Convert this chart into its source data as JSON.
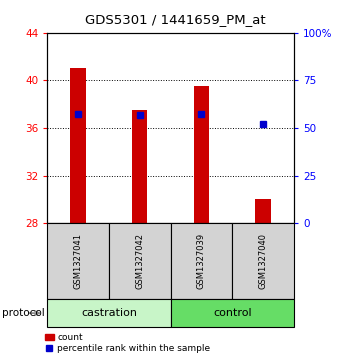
{
  "title": "GDS5301 / 1441659_PM_at",
  "samples": [
    "GSM1327041",
    "GSM1327042",
    "GSM1327039",
    "GSM1327040"
  ],
  "bar_values": [
    41.0,
    37.5,
    39.5,
    30.0
  ],
  "bar_bottom": 28.0,
  "percentile_values": [
    37.2,
    37.1,
    37.2,
    36.3
  ],
  "bar_color": "#cc0000",
  "percentile_color": "#0000cc",
  "ylim_left": [
    28,
    44
  ],
  "ylim_right": [
    0,
    100
  ],
  "yticks_left": [
    28,
    32,
    36,
    40,
    44
  ],
  "yticks_right": [
    0,
    25,
    50,
    75,
    100
  ],
  "ytick_labels_right": [
    "0",
    "25",
    "50",
    "75",
    "100%"
  ],
  "groups": [
    {
      "label": "castration",
      "indices": [
        0,
        1
      ],
      "color": "#c8f5c8"
    },
    {
      "label": "control",
      "indices": [
        2,
        3
      ],
      "color": "#66dd66"
    }
  ],
  "protocol_label": "protocol",
  "legend_count_label": "count",
  "legend_percentile_label": "percentile rank within the sample",
  "grid_yticks": [
    32,
    36,
    40
  ],
  "background_color": "#ffffff",
  "bar_width": 0.25
}
